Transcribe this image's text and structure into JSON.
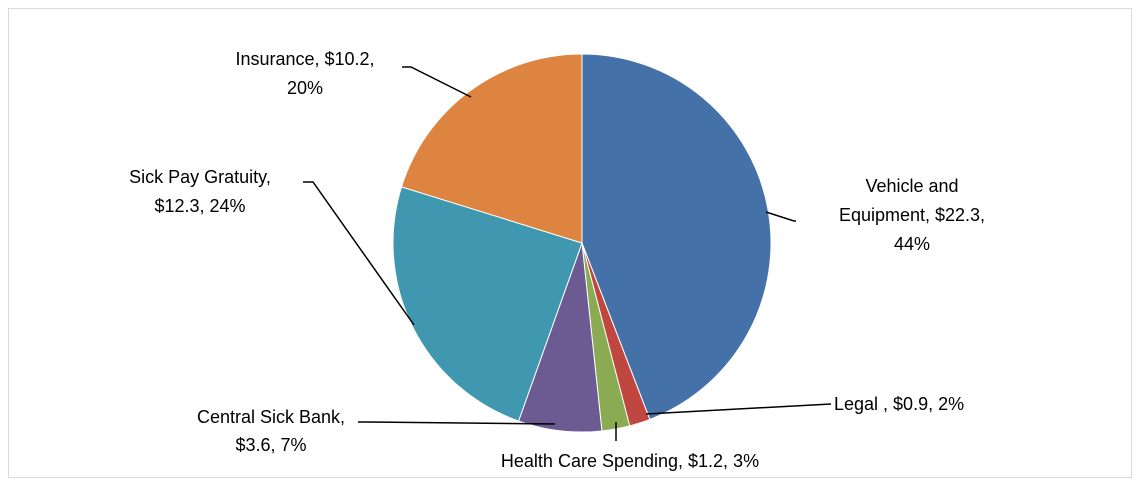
{
  "chart_data": {
    "type": "pie",
    "title": "",
    "legend": "none",
    "slices": [
      {
        "name": "Vehicle and Equipment",
        "value": 22.3,
        "value_label": "$22.3",
        "percent_label": "44%",
        "color": "#4472a8"
      },
      {
        "name": "Legal",
        "value": 0.9,
        "value_label": "$0.9",
        "percent_label": "2%",
        "color": "#c0473f"
      },
      {
        "name": "Health Care Spending",
        "value": 1.2,
        "value_label": "$1.2",
        "percent_label": "3%",
        "color": "#8aab52"
      },
      {
        "name": "Central Sick Bank",
        "value": 3.6,
        "value_label": "$3.6",
        "percent_label": "7%",
        "color": "#6c5a92"
      },
      {
        "name": "Sick Pay Gratuity",
        "value": 12.3,
        "value_label": "$12.3",
        "percent_label": "24%",
        "color": "#3f97b0"
      },
      {
        "name": "Insurance",
        "value": 10.2,
        "value_label": "$10.2",
        "percent_label": "20%",
        "color": "#dd8440"
      }
    ],
    "data_labels": [
      {
        "slice": "Vehicle and Equipment",
        "lines": [
          "Vehicle and",
          "Equipment, $22.3,",
          "44%"
        ]
      },
      {
        "slice": "Legal",
        "lines": [
          "Legal , $0.9, 2%"
        ]
      },
      {
        "slice": "Health Care Spending",
        "lines": [
          "Health Care Spending, $1.2, 3%"
        ]
      },
      {
        "slice": "Central Sick Bank",
        "lines": [
          "Central Sick Bank,",
          "$3.6, 7%"
        ]
      },
      {
        "slice": "Sick Pay Gratuity",
        "lines": [
          "Sick Pay Gratuity,",
          "$12.3, 24%"
        ]
      },
      {
        "slice": "Insurance",
        "lines": [
          "Insurance, $10.2,",
          "20%"
        ]
      }
    ]
  }
}
